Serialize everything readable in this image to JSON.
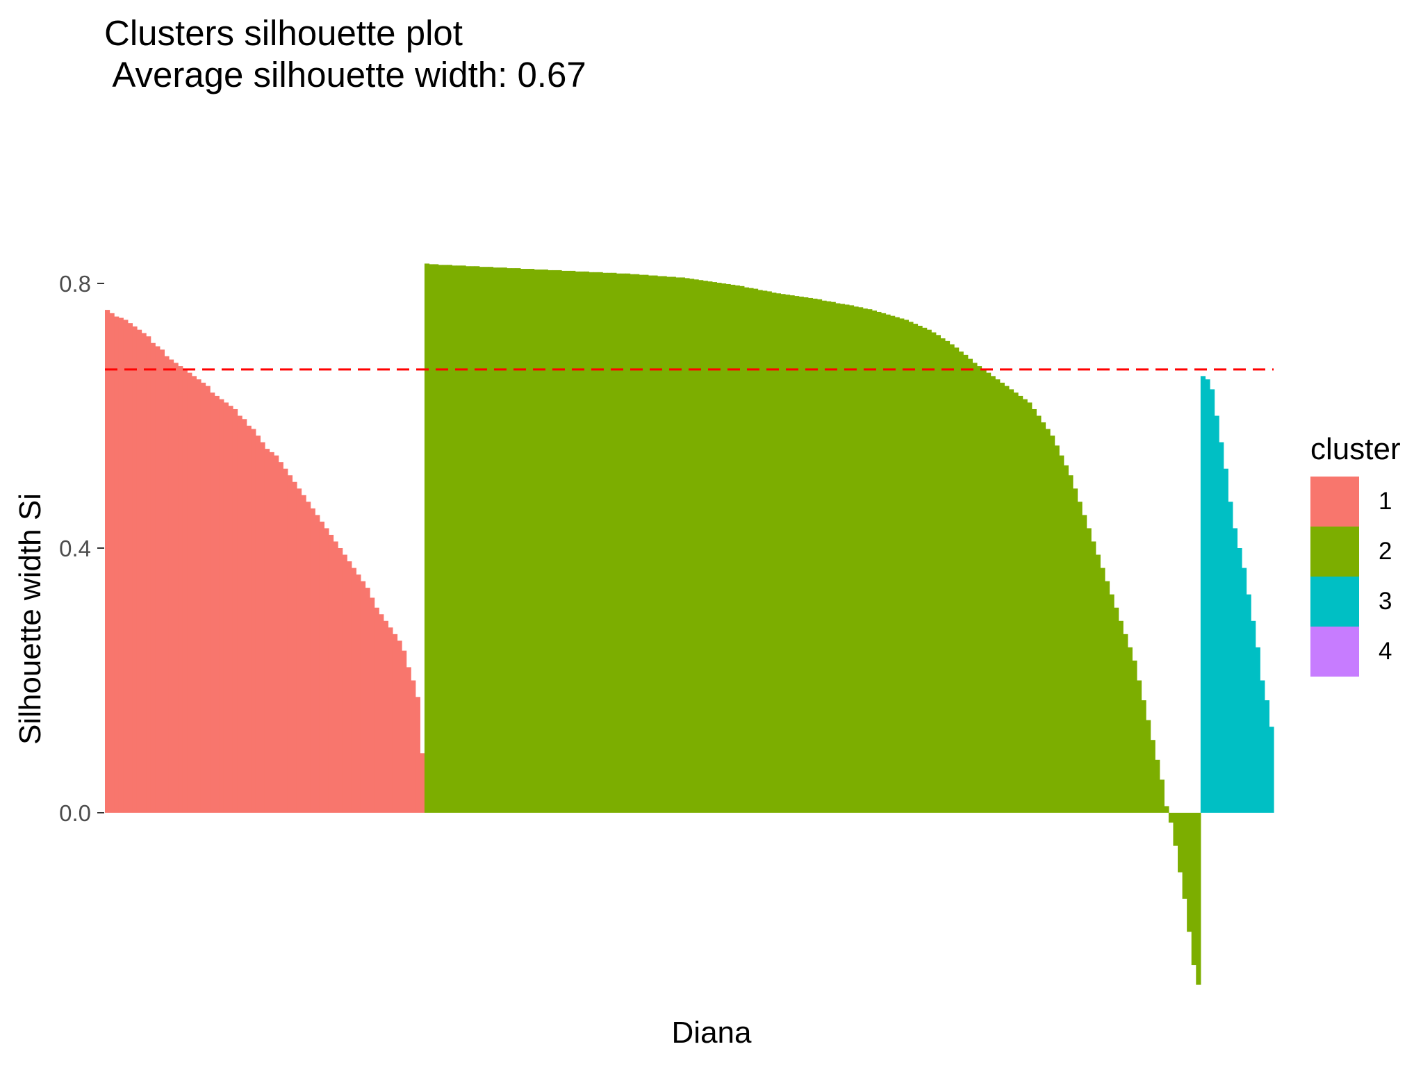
{
  "chart_data": {
    "type": "bar",
    "title": "Clusters silhouette plot",
    "subtitle": " Average silhouette width: 0.67",
    "xlabel": "Diana",
    "ylabel": "Silhouette width Si",
    "ylim": [
      -0.26,
      0.83
    ],
    "yticks": [
      0.0,
      0.4,
      0.8
    ],
    "ytick_labels": [
      "0.0",
      "0.4",
      "0.8"
    ],
    "grid": false,
    "legend_title": "cluster",
    "legend_position": "right",
    "average_line": {
      "value": 0.67,
      "color": "#ff0000",
      "style": "dashed"
    },
    "series": [
      {
        "name": "1",
        "color": "#F8766D",
        "values": [
          0.76,
          0.755,
          0.75,
          0.748,
          0.745,
          0.74,
          0.735,
          0.73,
          0.725,
          0.72,
          0.71,
          0.705,
          0.7,
          0.69,
          0.685,
          0.68,
          0.675,
          0.67,
          0.665,
          0.66,
          0.655,
          0.65,
          0.645,
          0.635,
          0.63,
          0.625,
          0.62,
          0.615,
          0.61,
          0.6,
          0.595,
          0.585,
          0.58,
          0.57,
          0.56,
          0.55,
          0.545,
          0.54,
          0.53,
          0.52,
          0.51,
          0.5,
          0.49,
          0.48,
          0.47,
          0.46,
          0.45,
          0.44,
          0.43,
          0.42,
          0.41,
          0.4,
          0.39,
          0.38,
          0.37,
          0.36,
          0.35,
          0.34,
          0.325,
          0.31,
          0.3,
          0.29,
          0.28,
          0.27,
          0.26,
          0.245,
          0.22,
          0.2,
          0.175,
          0.09
        ]
      },
      {
        "name": "2",
        "color": "#7CAE00",
        "values": [
          0.83,
          0.829,
          0.829,
          0.828,
          0.828,
          0.828,
          0.827,
          0.827,
          0.827,
          0.826,
          0.826,
          0.826,
          0.825,
          0.825,
          0.825,
          0.824,
          0.824,
          0.824,
          0.823,
          0.823,
          0.823,
          0.822,
          0.822,
          0.822,
          0.821,
          0.821,
          0.821,
          0.82,
          0.82,
          0.82,
          0.819,
          0.819,
          0.819,
          0.818,
          0.818,
          0.818,
          0.817,
          0.817,
          0.817,
          0.816,
          0.816,
          0.816,
          0.815,
          0.815,
          0.815,
          0.814,
          0.814,
          0.813,
          0.813,
          0.812,
          0.812,
          0.811,
          0.811,
          0.81,
          0.81,
          0.809,
          0.809,
          0.808,
          0.807,
          0.806,
          0.805,
          0.804,
          0.803,
          0.802,
          0.801,
          0.8,
          0.799,
          0.798,
          0.797,
          0.796,
          0.794,
          0.793,
          0.792,
          0.79,
          0.789,
          0.788,
          0.786,
          0.785,
          0.784,
          0.783,
          0.782,
          0.781,
          0.78,
          0.779,
          0.778,
          0.777,
          0.776,
          0.774,
          0.773,
          0.772,
          0.77,
          0.769,
          0.768,
          0.767,
          0.765,
          0.764,
          0.762,
          0.761,
          0.759,
          0.757,
          0.755,
          0.753,
          0.751,
          0.749,
          0.747,
          0.745,
          0.742,
          0.739,
          0.736,
          0.733,
          0.73,
          0.726,
          0.722,
          0.717,
          0.713,
          0.708,
          0.703,
          0.697,
          0.692,
          0.686,
          0.68,
          0.675,
          0.67,
          0.665,
          0.66,
          0.655,
          0.65,
          0.645,
          0.64,
          0.635,
          0.63,
          0.625,
          0.62,
          0.61,
          0.6,
          0.59,
          0.58,
          0.57,
          0.555,
          0.54,
          0.525,
          0.51,
          0.49,
          0.47,
          0.45,
          0.43,
          0.41,
          0.39,
          0.37,
          0.35,
          0.33,
          0.31,
          0.29,
          0.27,
          0.25,
          0.23,
          0.2,
          0.17,
          0.14,
          0.11,
          0.08,
          0.05,
          0.01,
          -0.015,
          -0.05,
          -0.09,
          -0.13,
          -0.18,
          -0.23,
          -0.26
        ]
      },
      {
        "name": "3",
        "color": "#00BFC4",
        "values": [
          0.66,
          0.655,
          0.64,
          0.6,
          0.56,
          0.52,
          0.47,
          0.43,
          0.4,
          0.37,
          0.33,
          0.29,
          0.25,
          0.2,
          0.17,
          0.13
        ]
      },
      {
        "name": "4",
        "color": "#C77CFF",
        "values": []
      }
    ]
  }
}
